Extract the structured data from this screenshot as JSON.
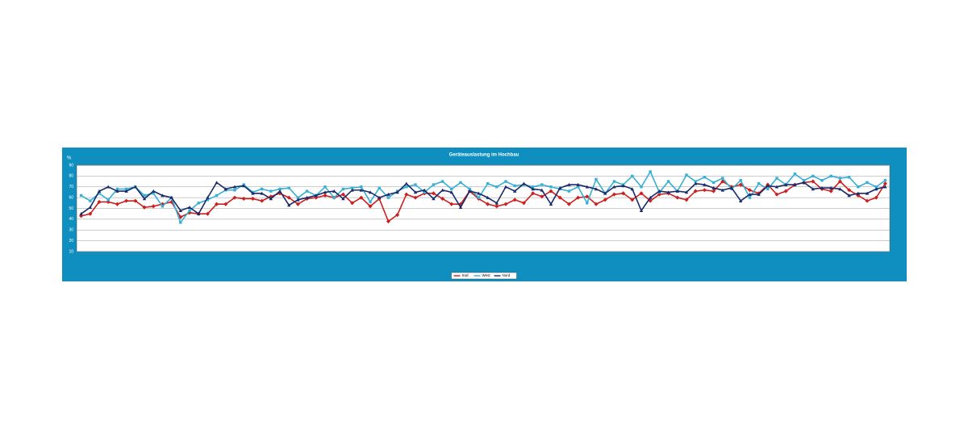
{
  "chart_data": {
    "type": "line",
    "title": "Geräteauslastung im Hochbau",
    "y_label": "%",
    "ylim": [
      10,
      90
    ],
    "yticks": [
      10,
      20,
      30,
      40,
      50,
      60,
      70,
      80,
      90
    ],
    "grid": true,
    "legend": "bottom",
    "categories": [
      null,
      null,
      null,
      null,
      null,
      null,
      null,
      null,
      null,
      null,
      null,
      null,
      null,
      null,
      null,
      null,
      null,
      null,
      null,
      null,
      null,
      null,
      null,
      null,
      null,
      null,
      null,
      null,
      null,
      null,
      null,
      null,
      null,
      null,
      null,
      null,
      null,
      null,
      null,
      null,
      null,
      null,
      null,
      null,
      null,
      null,
      null,
      null,
      null,
      null,
      null,
      null,
      null,
      null,
      null,
      null,
      null,
      null,
      null,
      null,
      null,
      null,
      null,
      null,
      null,
      null,
      null,
      null,
      null,
      null,
      null,
      null,
      null,
      null,
      null,
      null,
      null,
      null,
      null,
      null,
      null,
      null,
      null,
      null,
      null,
      null,
      null,
      null,
      null,
      null
    ],
    "series": [
      {
        "name": "Süd",
        "color": "#cc1f1f",
        "values": [
          43,
          45,
          56,
          56,
          54,
          57,
          57,
          51,
          52,
          54,
          56,
          42,
          46,
          45,
          45,
          54,
          54,
          60,
          59,
          59,
          57,
          61,
          64,
          60,
          54,
          59,
          60,
          62,
          60,
          63,
          55,
          60,
          52,
          59,
          38,
          44,
          63,
          60,
          64,
          64,
          59,
          54,
          54,
          66,
          59,
          54,
          52,
          54,
          58,
          55,
          64,
          61,
          66,
          60,
          54,
          60,
          61,
          54,
          58,
          63,
          64,
          58,
          64,
          57,
          63,
          64,
          60,
          58,
          66,
          67,
          66,
          75,
          70,
          72,
          67,
          64,
          72,
          63,
          66,
          72,
          74,
          75,
          68,
          66,
          75,
          67,
          62,
          57,
          60,
          73
        ]
      },
      {
        "name": "West",
        "color": "#36b0d4",
        "values": [
          62,
          57,
          64,
          58,
          68,
          68,
          70,
          62,
          64,
          52,
          60,
          37,
          48,
          55,
          58,
          62,
          67,
          67,
          72,
          65,
          68,
          66,
          68,
          69,
          60,
          66,
          62,
          70,
          60,
          68,
          69,
          70,
          56,
          69,
          60,
          66,
          70,
          72,
          65,
          72,
          75,
          68,
          74,
          68,
          60,
          73,
          70,
          75,
          71,
          72,
          70,
          72,
          70,
          68,
          66,
          70,
          55,
          77,
          64,
          75,
          72,
          80,
          70,
          84,
          65,
          75,
          66,
          81,
          75,
          79,
          74,
          78,
          68,
          76,
          60,
          73,
          68,
          78,
          72,
          82,
          76,
          80,
          76,
          80,
          78,
          79,
          70,
          74,
          70,
          76
        ]
      },
      {
        "name": "Nord",
        "color": "#1a2b6b",
        "values": [
          45,
          51,
          66,
          70,
          66,
          66,
          70,
          59,
          66,
          62,
          60,
          48,
          51,
          45,
          60,
          74,
          68,
          70,
          71,
          64,
          64,
          59,
          66,
          53,
          58,
          60,
          62,
          65,
          66,
          59,
          67,
          67,
          65,
          60,
          63,
          65,
          73,
          65,
          67,
          59,
          67,
          65,
          51,
          66,
          64,
          60,
          55,
          70,
          66,
          73,
          68,
          67,
          54,
          69,
          72,
          72,
          70,
          68,
          64,
          70,
          71,
          68,
          48,
          60,
          66,
          65,
          66,
          65,
          73,
          72,
          69,
          67,
          69,
          57,
          63,
          63,
          71,
          70,
          72,
          72,
          74,
          68,
          69,
          69,
          68,
          62,
          64,
          64,
          68,
          70
        ]
      }
    ]
  }
}
